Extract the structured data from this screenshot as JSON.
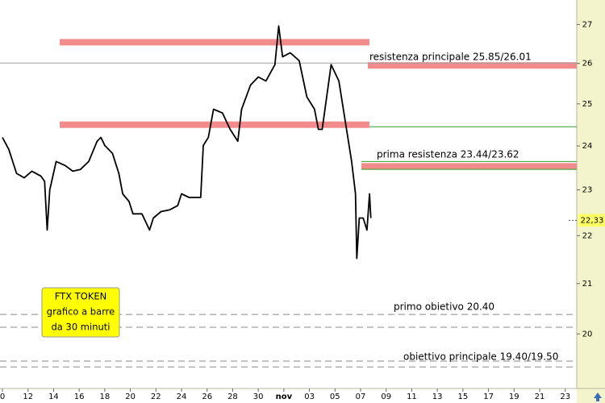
{
  "chart_data": {
    "type": "line",
    "x": [
      0,
      0.5,
      1.1,
      1.7,
      2.3,
      3.0,
      3.3,
      3.5,
      3.7,
      4.2,
      4.9,
      5.5,
      6.1,
      6.75,
      7.4,
      7.7,
      8.0,
      8.6,
      9.1,
      9.4,
      9.9,
      10.2,
      10.9,
      11.5,
      11.8,
      12.4,
      13.1,
      13.7,
      14.0,
      14.6,
      15.5,
      15.7,
      16.1,
      16.5,
      17.2,
      17.8,
      18.4,
      18.7,
      19.4,
      20.0,
      20.6,
      21.3,
      21.6,
      21.9,
      22.5,
      23.2,
      23.8,
      24.4,
      24.7,
      25.0,
      25.7,
      26.3,
      26.9,
      27.3,
      27.6,
      27.7,
      27.9,
      28.2,
      28.5,
      28.7,
      28.8
    ],
    "series": [
      {
        "color": "#000000",
        "values": [
          24.2,
          23.92,
          23.37,
          23.27,
          23.42,
          23.31,
          23.19,
          22.12,
          23.0,
          23.64,
          23.55,
          23.42,
          23.46,
          23.64,
          24.11,
          24.2,
          24.01,
          23.83,
          23.37,
          22.91,
          22.74,
          22.47,
          22.47,
          22.12,
          22.38,
          22.52,
          22.56,
          22.65,
          22.91,
          22.83,
          22.83,
          24.01,
          24.2,
          24.87,
          24.78,
          24.39,
          24.11,
          24.87,
          25.46,
          25.66,
          25.56,
          25.97,
          26.96,
          26.17,
          26.27,
          26.07,
          25.17,
          24.87,
          24.39,
          24.39,
          25.97,
          25.56,
          24.39,
          23.64,
          22.91,
          21.52,
          22.38,
          22.38,
          22.12,
          22.91,
          22.38
        ]
      }
    ],
    "log_scale": true,
    "xlim": [
      -0.19,
      44.9
    ],
    "ylim": [
      18.85,
      27.65
    ],
    "xticks": [
      {
        "value": 0,
        "label": "0"
      },
      {
        "value": 2,
        "label": "12"
      },
      {
        "value": 4,
        "label": "14"
      },
      {
        "value": 6,
        "label": "16"
      },
      {
        "value": 8,
        "label": "18"
      },
      {
        "value": 10,
        "label": "20"
      },
      {
        "value": 12,
        "label": "22"
      },
      {
        "value": 14,
        "label": "24"
      },
      {
        "value": 16,
        "label": "26"
      },
      {
        "value": 18,
        "label": "28"
      },
      {
        "value": 20,
        "label": "30"
      },
      {
        "value": 22,
        "label": "nov"
      },
      {
        "value": 24,
        "label": "03"
      },
      {
        "value": 26,
        "label": "05"
      },
      {
        "value": 28,
        "label": "07"
      },
      {
        "value": 30,
        "label": "09"
      },
      {
        "value": 32,
        "label": "11"
      },
      {
        "value": 34,
        "label": "13"
      },
      {
        "value": 36,
        "label": "15"
      },
      {
        "value": 38,
        "label": "17"
      },
      {
        "value": 40,
        "label": "19"
      },
      {
        "value": 42,
        "label": "21"
      },
      {
        "value": 44,
        "label": "23"
      }
    ],
    "yticks": [
      20,
      21,
      22,
      23,
      24,
      25,
      26,
      27
    ],
    "levels": [
      {
        "value": 26.54,
        "style": "band",
        "color": "#f28b8b"
      },
      {
        "value": 24.5,
        "style": "band",
        "color": "#f28b8b"
      },
      {
        "value": 25.95,
        "style": "band",
        "color": "#f28b8b"
      },
      {
        "value": 23.53,
        "style": "band",
        "color": "#f28b8b"
      },
      {
        "value": 26.01,
        "style": "line",
        "color": "#a0a0a0"
      },
      {
        "value": 24.45,
        "style": "line",
        "color": "#2e9e2e"
      },
      {
        "value": 23.64,
        "style": "line",
        "color": "#2e9e2e"
      },
      {
        "value": 23.46,
        "style": "line",
        "color": "#2e9e2e"
      },
      {
        "value": 20.38,
        "style": "dashed",
        "color": "#8a8a8a"
      },
      {
        "value": 20.13,
        "style": "dashed",
        "color": "#8a8a8a"
      },
      {
        "value": 19.48,
        "style": "dashed",
        "color": "#8a8a8a"
      },
      {
        "value": 19.37,
        "style": "dashed",
        "color": "#8a8a8a"
      }
    ],
    "annotations": [
      "resistenza principale 25.85/26.01",
      "prima resistenza 23.44/23.62",
      "primo obietivo 20.40",
      "obiettivo principale 19.40/19.50"
    ],
    "info_box": [
      "FTX TOKEN",
      "grafico a barre",
      "da 30 minuti"
    ],
    "last_price": {
      "value": 22.33,
      "label": "22,33"
    }
  }
}
